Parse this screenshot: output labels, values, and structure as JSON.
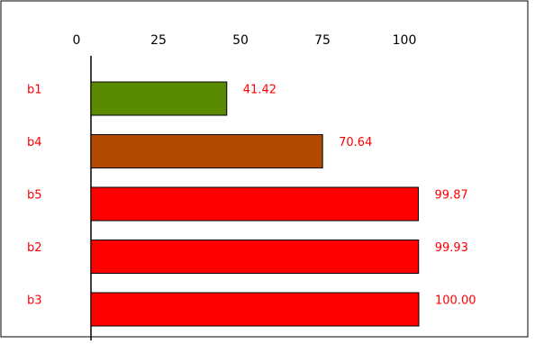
{
  "chart_data": {
    "type": "bar",
    "orientation": "horizontal",
    "title": "",
    "xlabel": "",
    "ylabel": "",
    "xlim": [
      0,
      100
    ],
    "x_ticks": [
      0,
      25,
      50,
      75,
      100
    ],
    "x_tick_labels": [
      "0",
      "25",
      "50",
      "75",
      "100"
    ],
    "x_axis_position": "top",
    "grid": false,
    "categories": [
      "b1",
      "b4",
      "b5",
      "b2",
      "b3"
    ],
    "values": [
      41.42,
      70.64,
      99.87,
      99.93,
      100.0
    ],
    "value_labels": [
      "41.42",
      "70.64",
      "99.87",
      "99.93",
      "100.00"
    ],
    "colors": [
      "#5a8a00",
      "#b04a00",
      "#ff0000",
      "#ff0000",
      "#ff0000"
    ],
    "label_color": "#ff0000",
    "axis_color": "#000000"
  }
}
